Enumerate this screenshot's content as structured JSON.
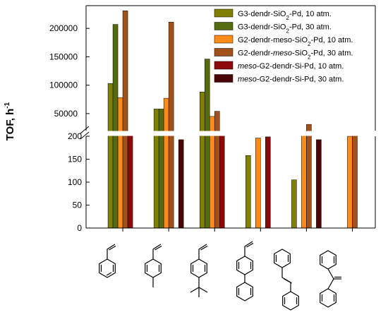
{
  "chart_data": {
    "type": "bar",
    "ylabel": "TOF, h",
    "ylabel_superscript": "-1",
    "y_axis_break": true,
    "lower_ylim": [
      0,
      200
    ],
    "upper_ylim": [
      20000,
      240000
    ],
    "lower_ticks": [
      "0",
      "50",
      "100",
      "150",
      "200"
    ],
    "upper_ticks": [
      "50000",
      "100000",
      "150000",
      "200000"
    ],
    "categories": [
      "styrene",
      "4-methylstyrene",
      "4-tert-butylstyrene",
      "4-vinylbiphenyl",
      "trans-stilbene",
      "1,1-diphenylethylene"
    ],
    "series": [
      {
        "name": "G3-dendr-SiO2-Pd, 10 atm.",
        "color": "#808000",
        "legend_parts": [
          [
            "G3-dendr-SiO",
            ""
          ],
          [
            "2",
            "sub"
          ],
          [
            "-Pd, 10 atm.",
            ""
          ]
        ],
        "values": [
          103000,
          58000,
          88000,
          158,
          105,
          0
        ]
      },
      {
        "name": "G3-dendr-SiO2-Pd, 30 atm.",
        "color": "#556B12",
        "legend_parts": [
          [
            "G3-dendr-SiO",
            ""
          ],
          [
            "2",
            "sub"
          ],
          [
            "-Pd, 30 atm.",
            ""
          ]
        ],
        "values": [
          207000,
          58000,
          146000,
          0,
          0,
          0
        ]
      },
      {
        "name": "G2-dendr-meso-SiO2-Pd, 10 atm.",
        "color": "#FF8C1A",
        "legend_parts": [
          [
            "G2-dendr-meso-SiO",
            ""
          ],
          [
            "2",
            "sub"
          ],
          [
            "-Pd, 10 atm.",
            ""
          ]
        ],
        "values": [
          78000,
          77000,
          45000,
          7000,
          12000,
          10000
        ]
      },
      {
        "name": "G2-dendr-meso-SiO2-Pd, 30 atm.",
        "color": "#A0521A",
        "legend_parts": [
          [
            "G2-dendr-",
            ""
          ],
          [
            "meso",
            "italic"
          ],
          [
            "-SiO",
            ""
          ],
          [
            "2",
            "sub"
          ],
          [
            "-Pd, 30 atm.",
            ""
          ]
        ],
        "values": [
          231000,
          211000,
          54000,
          0,
          31000,
          17000
        ]
      },
      {
        "name": "meso-G2-dendr-Si-Pd, 10 atm.",
        "color": "#8B0A0A",
        "legend_parts": [
          [
            "meso",
            "italic"
          ],
          [
            "-G2-dendr-Si-Pd, 10 atm.",
            ""
          ]
        ],
        "values": [
          13000,
          0,
          11000,
          9000,
          0,
          0
        ]
      },
      {
        "name": "meso-G2-dendr-Si-Pd, 30 atm.",
        "color": "#4A0606",
        "legend_parts": [
          [
            "meso",
            "italic"
          ],
          [
            "-G2-dendr-Si-Pd, 30 atm.",
            ""
          ]
        ],
        "values": [
          0,
          4000,
          0,
          0,
          4000,
          0
        ]
      }
    ]
  }
}
